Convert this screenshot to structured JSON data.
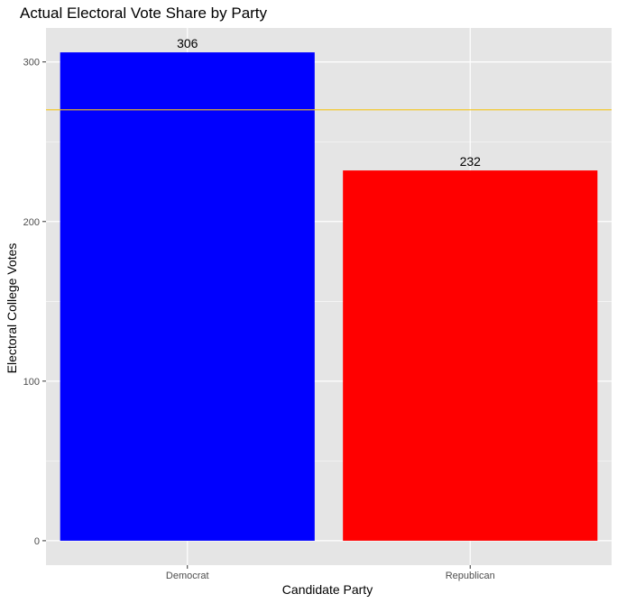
{
  "chart_data": {
    "type": "bar",
    "title": "Actual Electoral Vote Share by Party",
    "xlabel": "Candidate Party",
    "ylabel": "Electoral College Votes",
    "categories": [
      "Democrat",
      "Republican"
    ],
    "values": [
      306,
      232
    ],
    "data_labels": [
      "306",
      "232"
    ],
    "bar_colors": [
      "#0000ff",
      "#ff0000"
    ],
    "reference_line": {
      "y": 270,
      "color": "#f5c518"
    },
    "y_ticks": [
      0,
      100,
      200,
      300
    ],
    "y_tick_labels": [
      "0",
      "100",
      "200",
      "300"
    ],
    "ylim": [
      -15.3,
      321.3
    ],
    "grid": true,
    "panel_background": "#e5e5e5",
    "grid_color": "#ffffff"
  }
}
